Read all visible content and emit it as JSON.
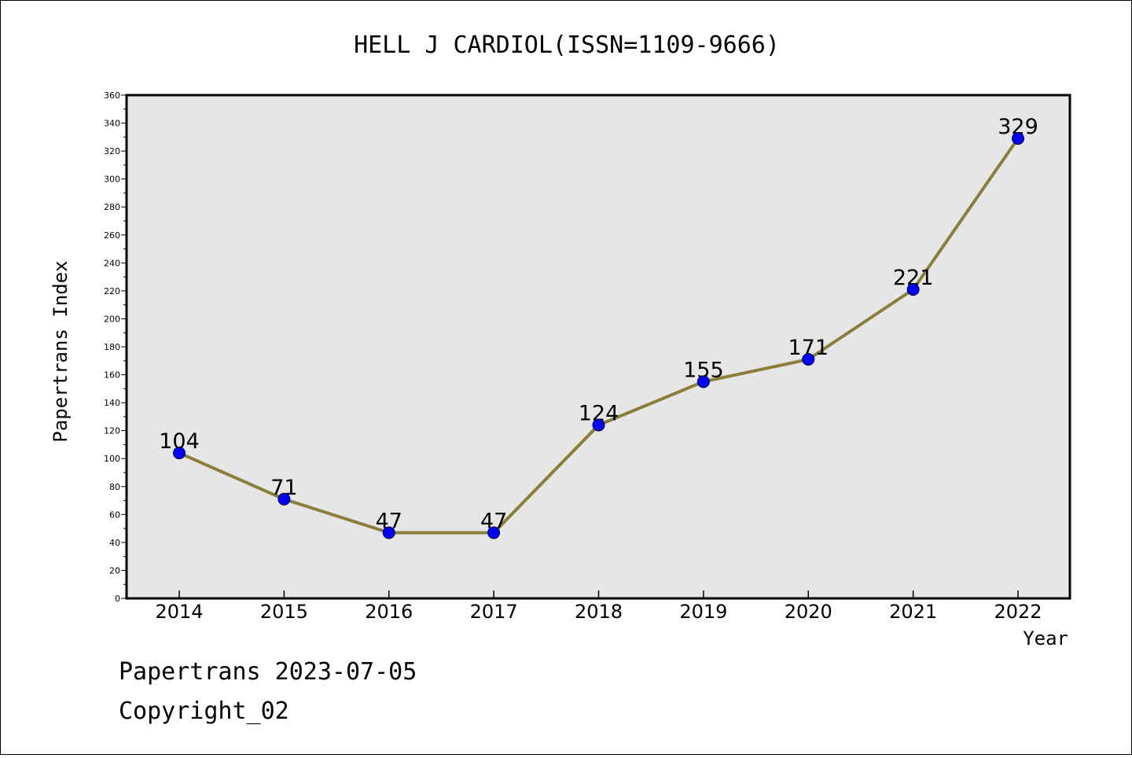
{
  "chart_data": {
    "type": "line",
    "title": "HELL J CARDIOL(ISSN=1109-9666)",
    "xlabel": "Year",
    "ylabel": "Papertrans Index",
    "categories": [
      "2014",
      "2015",
      "2016",
      "2017",
      "2018",
      "2019",
      "2020",
      "2021",
      "2022"
    ],
    "series": [
      {
        "values": [
          104,
          71,
          47,
          47,
          124,
          155,
          171,
          221,
          329
        ]
      }
    ],
    "ylim": [
      0,
      360
    ],
    "yticks": [
      0,
      20,
      40,
      60,
      80,
      100,
      120,
      140,
      160,
      180,
      200,
      220,
      240,
      260,
      280,
      300,
      320,
      340,
      360
    ],
    "grid": false,
    "data_labels": true,
    "colors": {
      "line": "#8B7D3A",
      "marker": "#0000FF",
      "plot_bg": "#E6E6E6"
    }
  },
  "footer": {
    "line1": "Papertrans 2023-07-05",
    "line2": "Copyright_02"
  }
}
